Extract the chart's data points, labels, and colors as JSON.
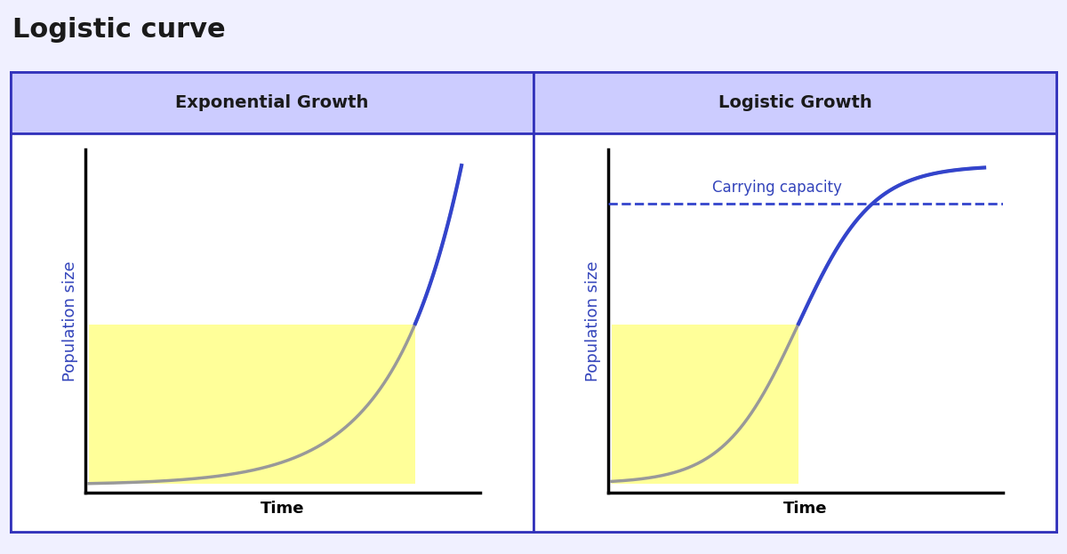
{
  "title": "Logistic curve",
  "title_fontsize": 22,
  "title_fontweight": "bold",
  "title_color": "#1a1a1a",
  "panel_header_bg": "#ccccff",
  "panel_border_color": "#3333bb",
  "panel_bg": "#ffffff",
  "outer_bg": "#f0f0ff",
  "left_title": "Exponential Growth",
  "right_title": "Logistic Growth",
  "header_fontsize": 14,
  "header_fontweight": "bold",
  "xlabel": "Time",
  "ylabel": "Population size",
  "axis_label_fontsize": 13,
  "curve_color_blue": "#3344cc",
  "curve_color_gray": "#999999",
  "yellow_fill": "#ffff99",
  "yellow_fill_alpha": 1.0,
  "dashed_color": "#3344cc",
  "carrying_capacity_label": "Carrying capacity",
  "carrying_capacity_fontsize": 12,
  "carrying_capacity_color": "#3344bb",
  "border_lw": 2.0
}
